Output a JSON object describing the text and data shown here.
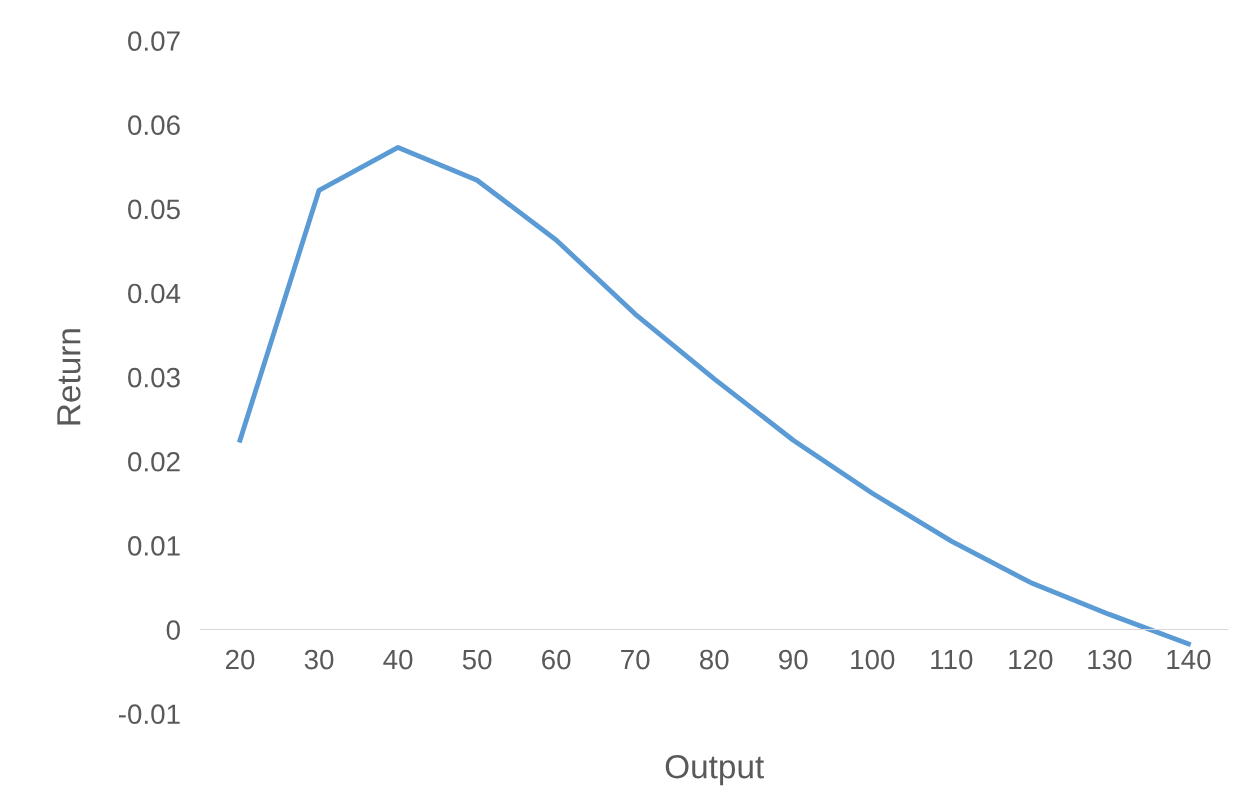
{
  "chart_data": {
    "type": "line",
    "xlabel": "Output",
    "ylabel": "Return",
    "categories": [
      "20",
      "30",
      "40",
      "50",
      "60",
      "70",
      "80",
      "90",
      "100",
      "110",
      "120",
      "130",
      "140"
    ],
    "series": [
      {
        "color": "#5b9bd5",
        "values": [
          0.0225,
          0.0522,
          0.0573,
          0.0534,
          0.0463,
          0.0375,
          0.0298,
          0.0225,
          0.0162,
          0.0105,
          0.0056,
          0.0018,
          -0.0017
        ]
      }
    ],
    "ylim": [
      -0.01,
      0.07
    ],
    "yticks": [
      -0.01,
      0,
      0.01,
      0.02,
      0.03,
      0.04,
      0.05,
      0.06,
      0.07
    ],
    "grid": false,
    "legend": false,
    "marker": "none",
    "line_style": "solid"
  }
}
